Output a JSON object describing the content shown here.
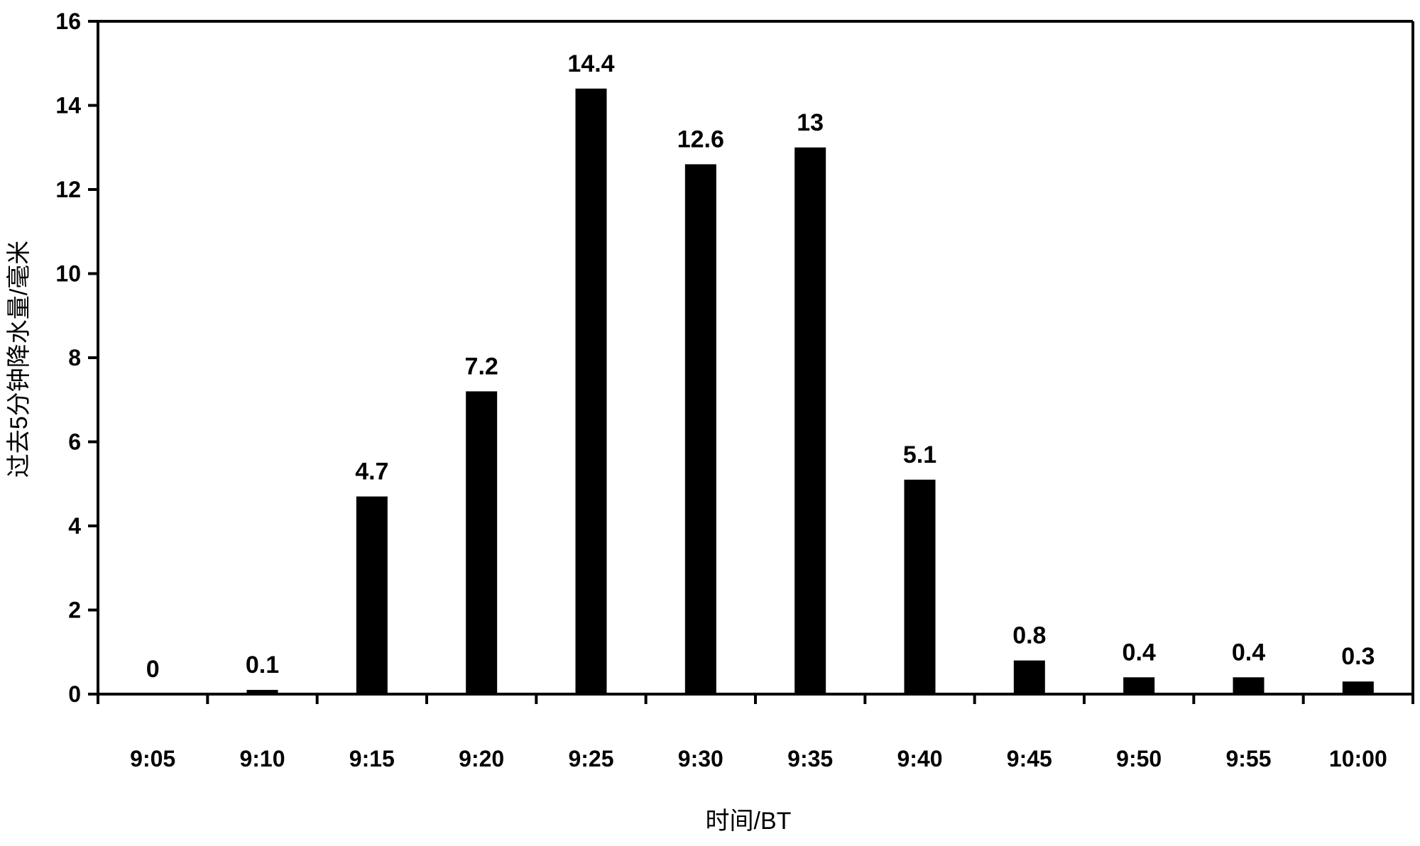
{
  "chart_data": {
    "type": "bar",
    "title": "",
    "xlabel": "时间/BT",
    "ylabel": "过去5分钟降水量/毫米",
    "categories": [
      "9:05",
      "9:10",
      "9:15",
      "9:20",
      "9:25",
      "9:30",
      "9:35",
      "9:40",
      "9:45",
      "9:50",
      "9:55",
      "10:00"
    ],
    "values": [
      0,
      0.1,
      4.7,
      7.2,
      14.4,
      12.6,
      13,
      5.1,
      0.8,
      0.4,
      0.4,
      0.3
    ],
    "data_labels": [
      "0",
      "0.1",
      "4.7",
      "7.2",
      "14.4",
      "12.6",
      "13",
      "5.1",
      "0.8",
      "0.4",
      "0.4",
      "0.3"
    ],
    "ylim": [
      0,
      16
    ],
    "yticks": [
      0,
      2,
      4,
      6,
      8,
      10,
      12,
      14,
      16
    ],
    "ytick_labels": [
      "0",
      "2",
      "4",
      "6",
      "8",
      "10",
      "12",
      "14",
      "16"
    ],
    "grid": false,
    "legend": "none",
    "bar_color": "#000000"
  }
}
